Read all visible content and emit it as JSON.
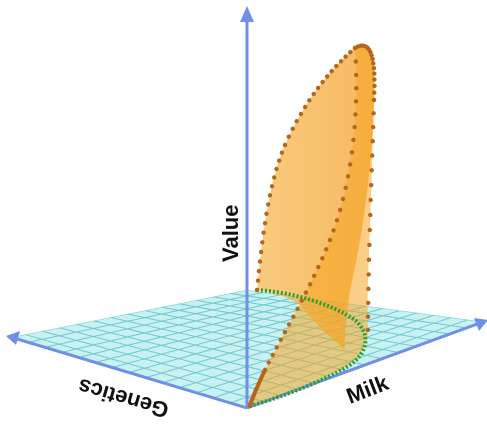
{
  "axes": {
    "vertical": {
      "label": "Value",
      "color": "#6f8fe8"
    },
    "right": {
      "label": "Milk",
      "color": "#6f8fe8"
    },
    "left": {
      "label": "Genetics",
      "color": "#6f8fe8"
    }
  },
  "floor": {
    "fill": "#bfeef0",
    "grid_color": "#6fc9cf"
  },
  "surface": {
    "fill": "#f5a623",
    "fill_opacity": 0.65,
    "edge_dots": "#b5651d",
    "base_curve": "#2e9e2e"
  }
}
